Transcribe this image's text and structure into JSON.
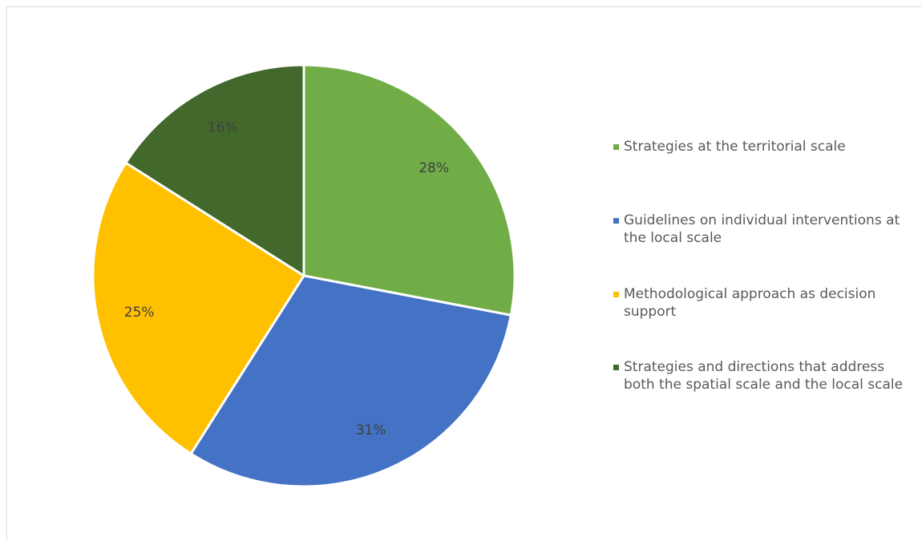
{
  "chart_data": {
    "type": "pie",
    "start_angle_deg": 0,
    "direction": "clockwise",
    "legend_position": "right",
    "slices": [
      {
        "label": "Strategies at the territorial scale",
        "value": 28,
        "value_label": "28%",
        "color": "#70AD47"
      },
      {
        "label": "Guidelines on individual interventions at the local scale",
        "value": 31,
        "value_label": "31%",
        "color": "#4472C4"
      },
      {
        "label": "Methodological approach as decision support",
        "value": 25,
        "value_label": "25%",
        "color": "#FFC000"
      },
      {
        "label": "Strategies and directions that address both the spatial scale and the local scale",
        "value": 16,
        "value_label": "16%",
        "color": "#43682B"
      }
    ]
  }
}
